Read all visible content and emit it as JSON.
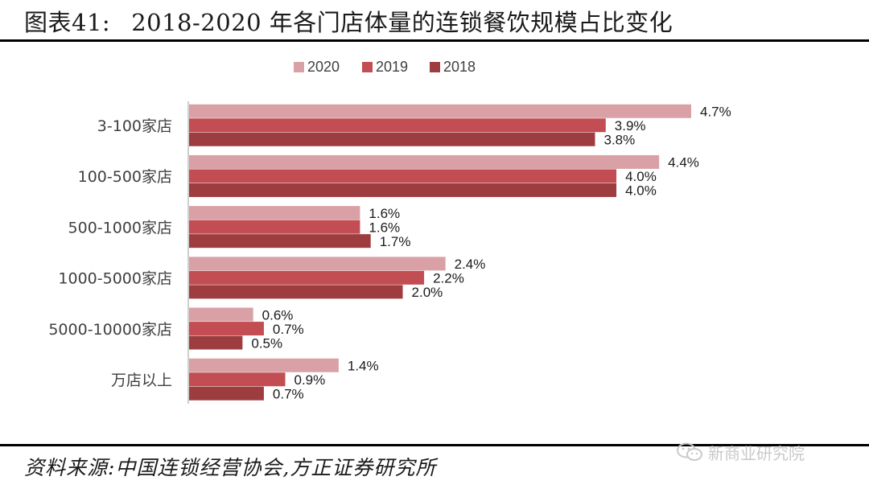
{
  "header": {
    "figure_no": "图表41:",
    "title": "2018-2020 年各门店体量的连锁餐饮规模占比变化"
  },
  "source": "资料来源:中国连锁经营协会,方正证券研究所",
  "watermark": {
    "icon": "wechat-icon",
    "text": "新商业研究院"
  },
  "colors": {
    "2020": "#d9a1a6",
    "2019": "#c24d52",
    "2018": "#9e3d40"
  },
  "chart_data": {
    "type": "bar",
    "orientation": "horizontal",
    "categories": [
      "3-100家店",
      "100-500家店",
      "500-1000家店",
      "1000-5000家店",
      "5000-10000家店",
      "万店以上"
    ],
    "series": [
      {
        "name": "2020",
        "values": [
          4.7,
          4.4,
          1.6,
          2.4,
          0.6,
          1.4
        ],
        "labels": [
          "4.7%",
          "4.4%",
          "1.6%",
          "2.4%",
          "0.6%",
          "1.4%"
        ]
      },
      {
        "name": "2019",
        "values": [
          3.9,
          4.0,
          1.6,
          2.2,
          0.7,
          0.9
        ],
        "labels": [
          "3.9%",
          "4.0%",
          "1.6%",
          "2.2%",
          "0.7%",
          "0.9%"
        ]
      },
      {
        "name": "2018",
        "values": [
          3.8,
          4.0,
          1.7,
          2.0,
          0.5,
          0.7
        ],
        "labels": [
          "3.8%",
          "4.0%",
          "1.7%",
          "2.0%",
          "0.5%",
          "0.7%"
        ]
      }
    ],
    "unit": "%",
    "xlim": [
      0,
      4.7
    ],
    "legend_position": "top-center",
    "grid": false,
    "xaxis_visible": false
  }
}
